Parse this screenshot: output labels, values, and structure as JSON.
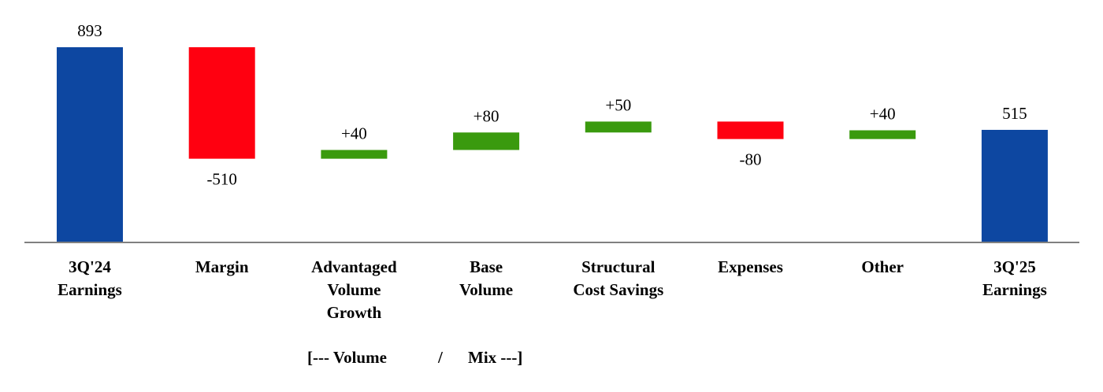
{
  "chart_data": {
    "type": "bar",
    "subtype": "waterfall",
    "categories": [
      [
        "3Q'24",
        "Earnings"
      ],
      [
        "Margin"
      ],
      [
        "Advantaged",
        "Volume",
        "Growth"
      ],
      [
        "Base",
        "Volume"
      ],
      [
        "Structural",
        "Cost Savings"
      ],
      [
        "Expenses"
      ],
      [
        "Other"
      ],
      [
        "3Q'25",
        "Earnings"
      ]
    ],
    "values": [
      893,
      -510,
      40,
      80,
      50,
      -80,
      40,
      515
    ],
    "value_labels": [
      "893",
      "-510",
      "+40",
      "+80",
      "+50",
      "-80",
      "+40",
      "515"
    ],
    "kinds": [
      "total",
      "delta",
      "delta",
      "delta",
      "delta",
      "delta",
      "delta",
      "total"
    ],
    "colors": {
      "total": "#0D47A1",
      "increase": "#3A9A0E",
      "decrease": "#FF0010",
      "axis": "#808080"
    },
    "group_annotation": {
      "left": "[--- Volume",
      "separator": "/",
      "right": "Mix ---]"
    },
    "ylim": [
      0,
      893
    ],
    "grid": false,
    "legend": "none"
  }
}
